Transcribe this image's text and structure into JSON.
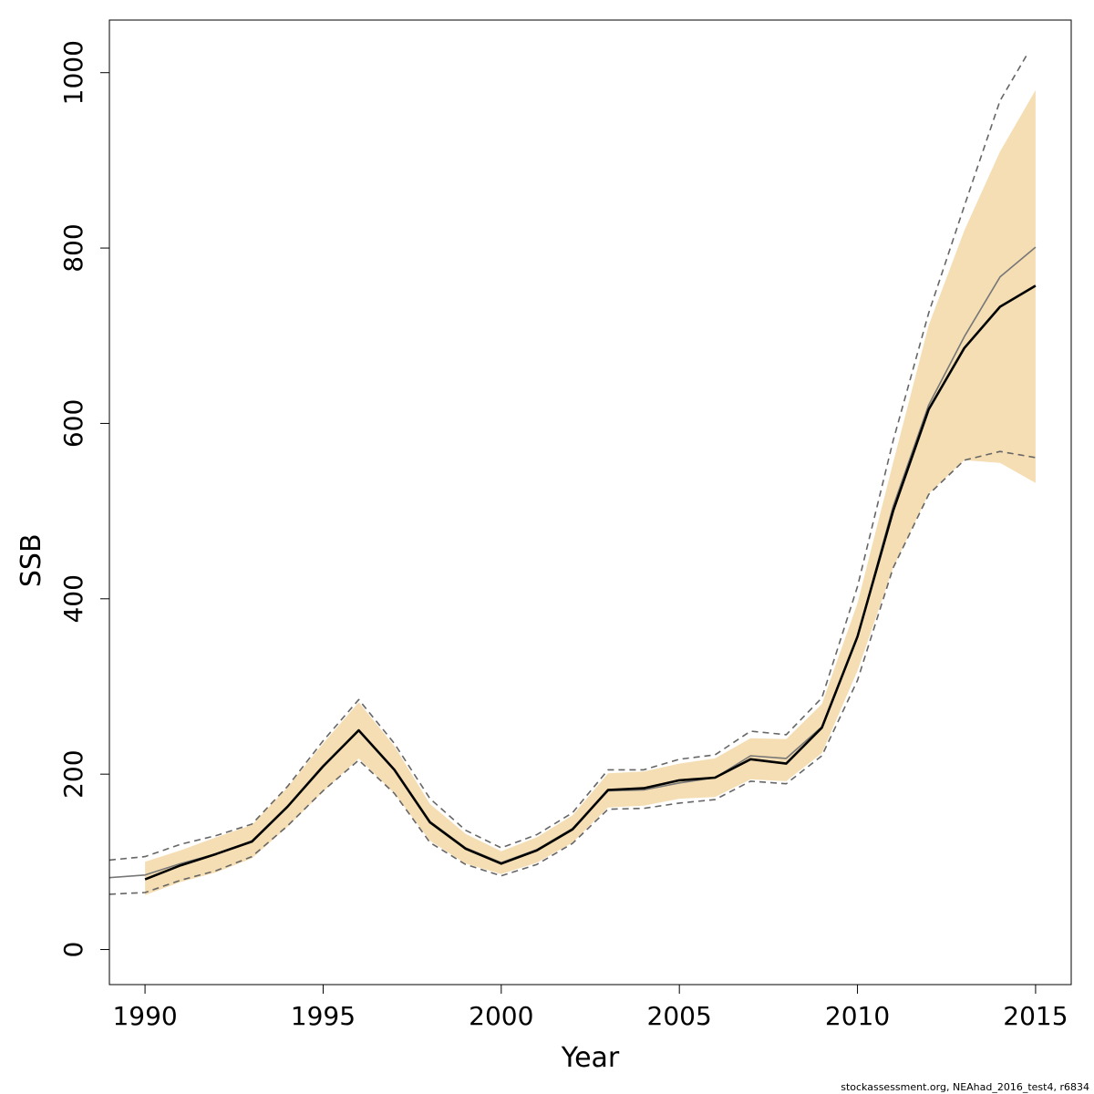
{
  "chart_data": {
    "type": "line",
    "xlabel": "Year",
    "ylabel": "SSB",
    "xlim": [
      1989,
      2016
    ],
    "ylim": [
      -40,
      1060
    ],
    "x_ticks": [
      1990,
      1995,
      2000,
      2005,
      2010,
      2015
    ],
    "y_ticks": [
      0,
      200,
      400,
      600,
      800,
      1000
    ],
    "grid": false,
    "colors": {
      "band_fill": "#f5deb3",
      "main_line": "#000000",
      "compare_line": "#777777",
      "dashed_line": "#666666"
    },
    "band": {
      "x": [
        1990,
        1991,
        1992,
        1993,
        1994,
        1995,
        1996,
        1997,
        1998,
        1999,
        2000,
        2001,
        2002,
        2003,
        2004,
        2005,
        2006,
        2007,
        2008,
        2009,
        2010,
        2011,
        2012,
        2013,
        2014,
        2015
      ],
      "lower": [
        62,
        77,
        88,
        104,
        140,
        180,
        218,
        178,
        124,
        98,
        86,
        99,
        122,
        162,
        164,
        172,
        174,
        194,
        192,
        224,
        318,
        435,
        520,
        558,
        555,
        532
      ],
      "upper": [
        100,
        113,
        128,
        142,
        185,
        235,
        282,
        232,
        166,
        132,
        112,
        128,
        153,
        201,
        203,
        212,
        218,
        241,
        240,
        280,
        395,
        555,
        712,
        820,
        910,
        980
      ]
    },
    "series": [
      {
        "role": "estimate",
        "x": [
          1990,
          1991,
          1992,
          1993,
          1994,
          1995,
          1996,
          1997,
          1998,
          1999,
          2000,
          2001,
          2002,
          2003,
          2004,
          2005,
          2006,
          2007,
          2008,
          2009,
          2010,
          2011,
          2012,
          2013,
          2014,
          2015
        ],
        "y": [
          80,
          96,
          109,
          123,
          163,
          209,
          250,
          205,
          145,
          115,
          98,
          113,
          137,
          182,
          184,
          193,
          196,
          217,
          212,
          253,
          357,
          500,
          616,
          686,
          733,
          757
        ]
      },
      {
        "role": "comparison-estimate",
        "x": [
          1989,
          1990,
          1991,
          1992,
          1993,
          1994,
          1995,
          1996,
          1997,
          1998,
          1999,
          2000,
          2001,
          2002,
          2003,
          2004,
          2005,
          2006,
          2007,
          2008,
          2009,
          2010,
          2011,
          2012,
          2013,
          2014,
          2015
        ],
        "y": [
          82,
          85,
          98,
          109,
          124,
          163,
          208,
          250,
          205,
          146,
          116,
          99,
          114,
          138,
          181,
          182,
          190,
          196,
          221,
          218,
          254,
          357,
          505,
          621,
          699,
          767,
          801
        ]
      },
      {
        "role": "comparison-upper",
        "x": [
          1989,
          1990,
          1991,
          1992,
          1993,
          1994,
          1995,
          1996,
          1997,
          1998,
          1999,
          2000,
          2001,
          2002,
          2003,
          2004,
          2005,
          2006,
          2007,
          2008,
          2009,
          2010,
          2011,
          2012,
          2013,
          2014,
          2014.75
        ],
        "y": [
          102,
          106,
          120,
          130,
          143,
          186,
          238,
          285,
          235,
          172,
          136,
          116,
          131,
          156,
          205,
          205,
          217,
          222,
          249,
          245,
          287,
          414,
          580,
          726,
          848,
          968,
          1020
        ]
      },
      {
        "role": "comparison-lower",
        "x": [
          1989,
          1990,
          1991,
          1992,
          1993,
          1994,
          1995,
          1996,
          1997,
          1998,
          1999,
          2000,
          2001,
          2002,
          2003,
          2004,
          2005,
          2006,
          2007,
          2008,
          2009,
          2010,
          2011,
          2012,
          2013,
          2014,
          2015
        ],
        "y": [
          63,
          65,
          79,
          90,
          106,
          141,
          181,
          216,
          178,
          122,
          97,
          84,
          97,
          121,
          160,
          161,
          167,
          171,
          192,
          189,
          221,
          307,
          435,
          519,
          558,
          568,
          561
        ]
      }
    ],
    "footnote": "stockassessment.org, NEAhad_2016_test4, r6834"
  }
}
